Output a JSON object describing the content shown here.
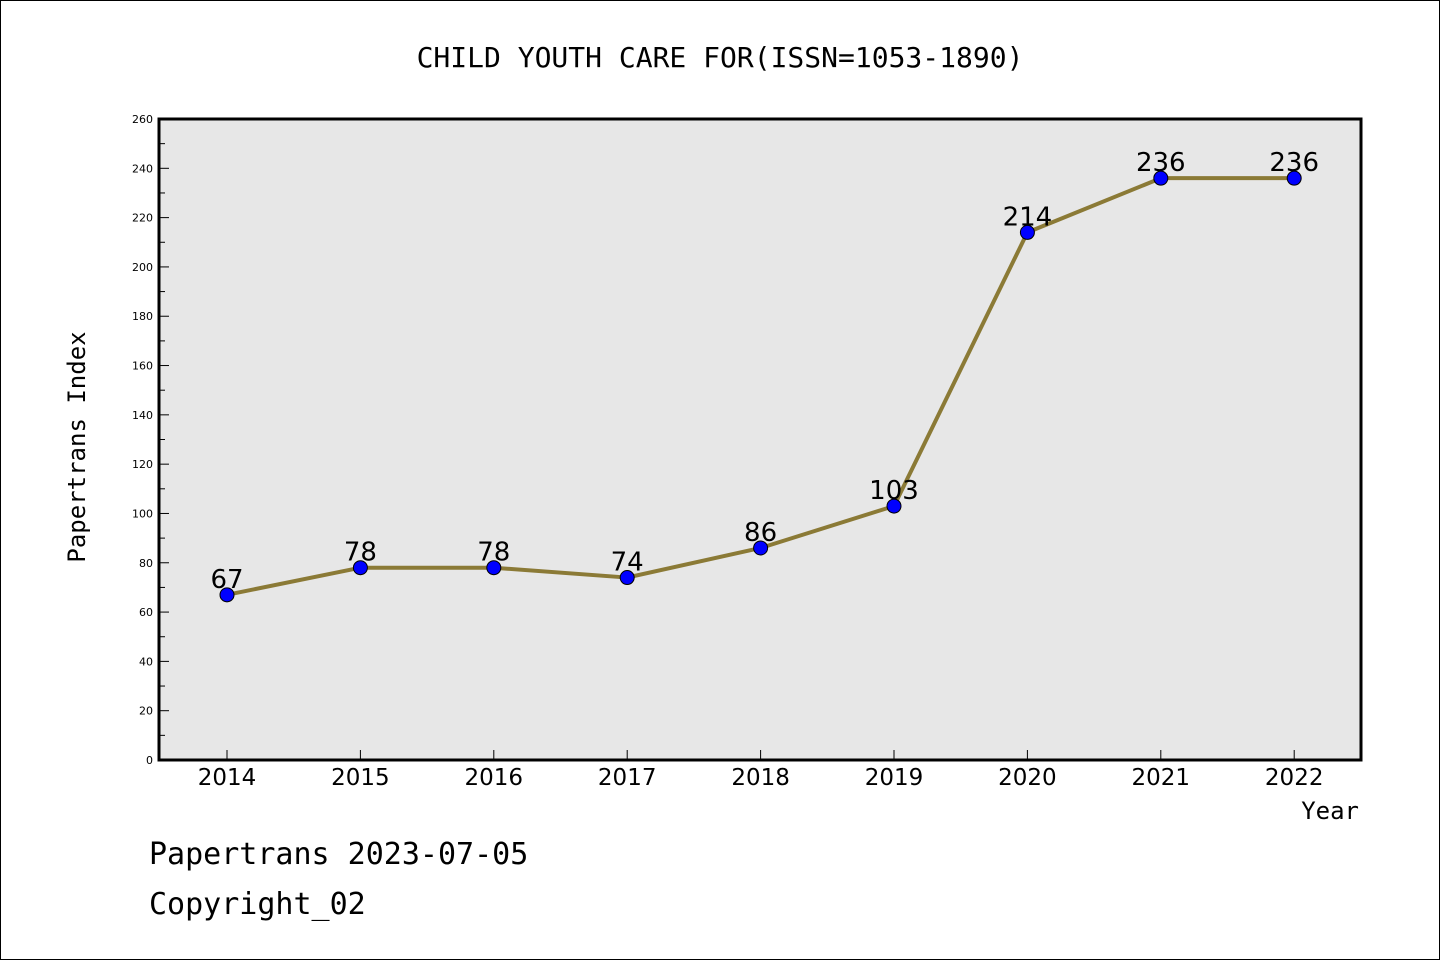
{
  "chart_data": {
    "type": "line",
    "title": "CHILD YOUTH CARE FOR(ISSN=1053-1890)",
    "xlabel": "Year",
    "ylabel": "Papertrans Index",
    "ylim": [
      0,
      260
    ],
    "ytick_step": 20,
    "grid": false,
    "categories": [
      "2014",
      "2015",
      "2016",
      "2017",
      "2018",
      "2019",
      "2020",
      "2021",
      "2022"
    ],
    "series": [
      {
        "values": [
          67,
          78,
          78,
          74,
          86,
          103,
          214,
          236,
          236
        ],
        "line_color": "#8b7a36",
        "marker_color": "#0000ff"
      }
    ],
    "plot_background": "#e7e7e7"
  },
  "footer": {
    "source": "Papertrans 2023-07-05",
    "copyright": "Copyright_02"
  }
}
